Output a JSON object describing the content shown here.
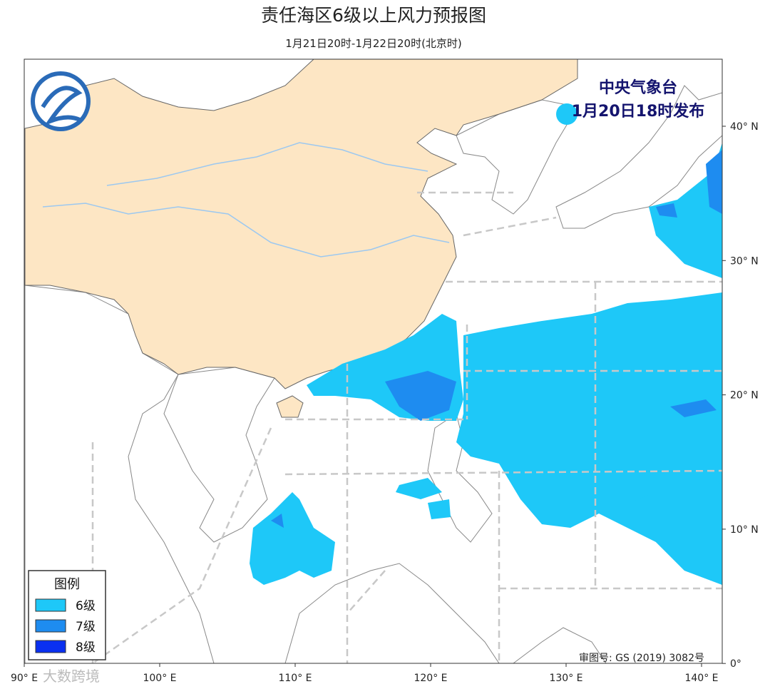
{
  "header": {
    "title": "责任海区6级以上风力预报图",
    "subtitle": "1月21日20时-1月22日20时(北京时)"
  },
  "issuer": {
    "org": "中央气象台",
    "time": "1月20日18时发布"
  },
  "legend": {
    "title": "图例",
    "items": [
      {
        "label": "6级",
        "color": "#1ec8f8"
      },
      {
        "label": "7级",
        "color": "#1e8cf0"
      },
      {
        "label": "8级",
        "color": "#0a30f0"
      }
    ]
  },
  "axes": {
    "longitude_labels": [
      "90° E",
      "100° E",
      "110° E",
      "120° E",
      "130° E",
      "140° E"
    ],
    "latitude_labels": [
      "40° N",
      "30° N",
      "20° N",
      "10° N",
      "0°"
    ]
  },
  "footer": {
    "approval": "审图号: GS (2019) 3082号",
    "watermark": "大数跨境"
  }
}
